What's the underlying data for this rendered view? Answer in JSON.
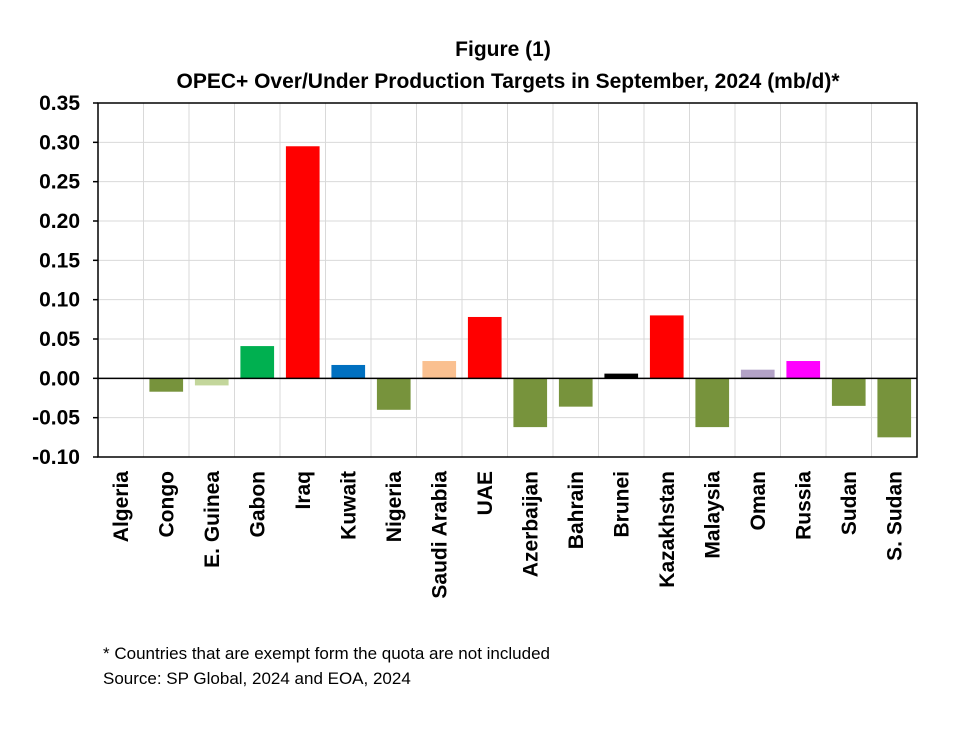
{
  "chart_data": {
    "type": "bar",
    "title": "Figure (1)",
    "subtitle": "OPEC+ Over/Under Production Targets in September, 2024 (mb/d)*",
    "xlabel": "",
    "ylabel": "",
    "ylim": [
      -0.1,
      0.35
    ],
    "ytick_values": [
      -0.1,
      -0.05,
      0.0,
      0.05,
      0.1,
      0.15,
      0.2,
      0.25,
      0.3,
      0.35
    ],
    "ytick_labels": [
      "-0.10",
      "-0.05",
      "0.00",
      "0.05",
      "0.10",
      "0.15",
      "0.20",
      "0.25",
      "0.30",
      "0.35"
    ],
    "grid": true,
    "legend": "none",
    "categories": [
      "Algeria",
      "Congo",
      "E. Guinea",
      "Gabon",
      "Iraq",
      "Kuwait",
      "Nigeria",
      "Saudi Arabia",
      "UAE",
      "Azerbaijan",
      "Bahrain",
      "Brunei",
      "Kazakhstan",
      "Malaysia",
      "Oman",
      "Russia",
      "Sudan",
      "S. Sudan"
    ],
    "values": [
      0.0,
      -0.017,
      -0.009,
      0.041,
      0.295,
      0.017,
      -0.04,
      0.022,
      0.078,
      -0.062,
      -0.036,
      0.006,
      0.08,
      -0.062,
      0.011,
      0.022,
      -0.035,
      -0.075
    ],
    "colors": [
      "#77933C",
      "#77933C",
      "#C3D69B",
      "#00B050",
      "#FF0000",
      "#0070C0",
      "#77933C",
      "#FAC090",
      "#FF0000",
      "#77933C",
      "#77933C",
      "#000000",
      "#FF0000",
      "#77933C",
      "#B3A2C7",
      "#FF00FF",
      "#77933C",
      "#77933C"
    ]
  },
  "notes": {
    "footnote": "* Countries that are exempt form the quota are not included",
    "source": "Source: SP Global, 2024 and EOA, 2024"
  }
}
